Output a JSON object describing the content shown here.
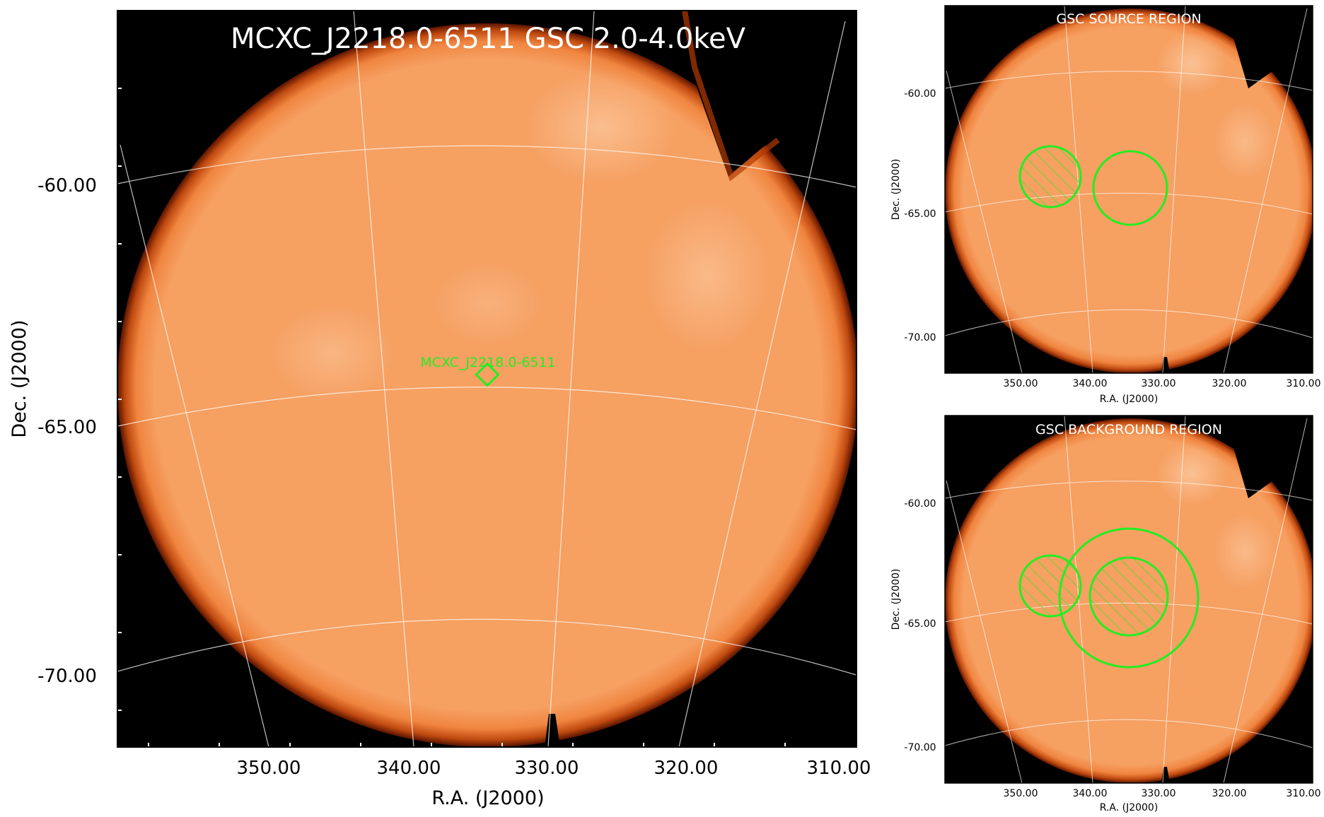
{
  "main": {
    "title": "MCXC_J2218.0-6511 GSC 2.0-4.0keV",
    "source_label": "MCXC_J2218.0-6511",
    "xlabel": "R.A. (J2000)",
    "ylabel": "Dec. (J2000)",
    "x_ticks": [
      "350.00",
      "340.00",
      "330.00",
      "320.00",
      "310.00"
    ],
    "y_ticks": [
      "-60.00",
      "-65.00",
      "-70.00"
    ]
  },
  "source_panel": {
    "title": "GSC SOURCE REGION",
    "xlabel": "R.A. (J2000)",
    "ylabel": "Dec. (J2000)",
    "x_ticks": [
      "350.00",
      "340.00",
      "330.00",
      "320.00",
      "310.00"
    ],
    "y_ticks": [
      "-60.00",
      "-65.00",
      "-70.00"
    ]
  },
  "background_panel": {
    "title": "GSC BACKGROUND REGION",
    "xlabel": "R.A. (J2000)",
    "ylabel": "Dec. (J2000)",
    "x_ticks": [
      "350.00",
      "340.00",
      "330.00",
      "320.00",
      "310.00"
    ],
    "y_ticks": [
      "-60.00",
      "-65.00",
      "-70.00"
    ]
  },
  "colors": {
    "sky": "#f59b57",
    "sky_light": "#fbc8a0",
    "edge": "#7a1e00",
    "frame_bg": "#000000",
    "region": "#22ee22",
    "grid": "#ffffff"
  }
}
